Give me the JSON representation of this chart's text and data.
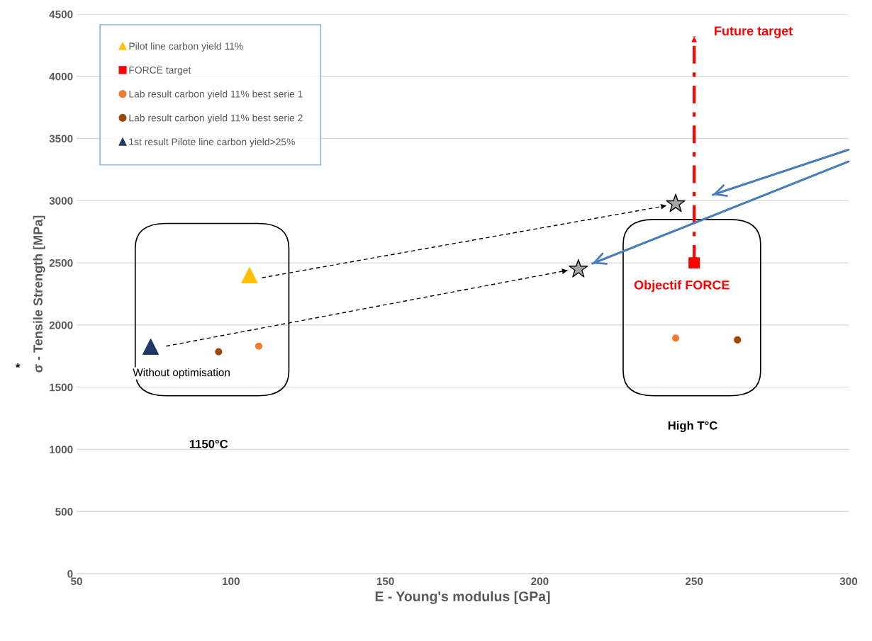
{
  "chart_data": {
    "type": "scatter",
    "xlabel": "E - Young's modulus [GPa]",
    "ylabel": "σ - Tensile Strength [MPa]",
    "xlim": [
      50,
      300
    ],
    "xticks": [
      50,
      100,
      150,
      200,
      250,
      300
    ],
    "ylim": [
      0,
      4500
    ],
    "yticks": [
      0,
      500,
      1000,
      1500,
      2000,
      2500,
      3000,
      3500,
      4000,
      4500
    ],
    "grid": "y",
    "legend": "top left",
    "series": [
      {
        "name": "Pilot line carbon yield 11%",
        "color": "#ffc000",
        "marker": "triangle",
        "x": [
          106
        ],
        "values": [
          2400
        ]
      },
      {
        "name": "FORCE target",
        "color": "#ff0000",
        "marker": "square",
        "x": [
          250
        ],
        "values": [
          2500
        ]
      },
      {
        "name": "Lab result carbon yield 11% best serie 1",
        "color": "#ed7d31",
        "marker": "circle",
        "x": [
          109,
          244
        ],
        "values": [
          1830,
          1895
        ]
      },
      {
        "name": "Lab result carbon yield 11% best serie 2",
        "color": "#9e480e",
        "marker": "circle",
        "x": [
          96,
          264
        ],
        "values": [
          1785,
          1880
        ]
      },
      {
        "name": "1st result Pilote line carbon yield>25%",
        "color": "#203864",
        "marker": "triangle",
        "x": [
          74
        ],
        "values": [
          1825
        ]
      },
      {
        "color": "#a6a6a6",
        "marker": "star",
        "x": [
          212.5,
          244
        ],
        "values": [
          2450,
          2975
        ]
      },
      {
        "type": "line",
        "color": "#000000",
        "line_style": "dashed",
        "x": [
          110,
          241
        ],
        "values": [
          2380,
          2960
        ]
      },
      {
        "type": "line",
        "color": "#000000",
        "line_style": "dashed",
        "x": [
          79,
          209
        ],
        "values": [
          1830,
          2440
        ]
      },
      {
        "type": "line",
        "color": "#ff0000",
        "line_style": "dashed",
        "x": [
          250,
          250
        ],
        "values": [
          2500,
          4320
        ]
      },
      {
        "type": "line",
        "color": "#4a7ebb",
        "line_style": "solid",
        "x": [
          300,
          256
        ],
        "values": [
          3410,
          3047
        ]
      },
      {
        "type": "line",
        "color": "#4a7ebb",
        "line_style": "solid",
        "x": [
          300,
          217
        ],
        "values": [
          3315,
          2494
        ]
      }
    ],
    "annotations": [
      "Future target",
      "Objectif FORCE",
      "Without optimisation",
      "1150°C",
      "High T°C",
      "*"
    ]
  }
}
